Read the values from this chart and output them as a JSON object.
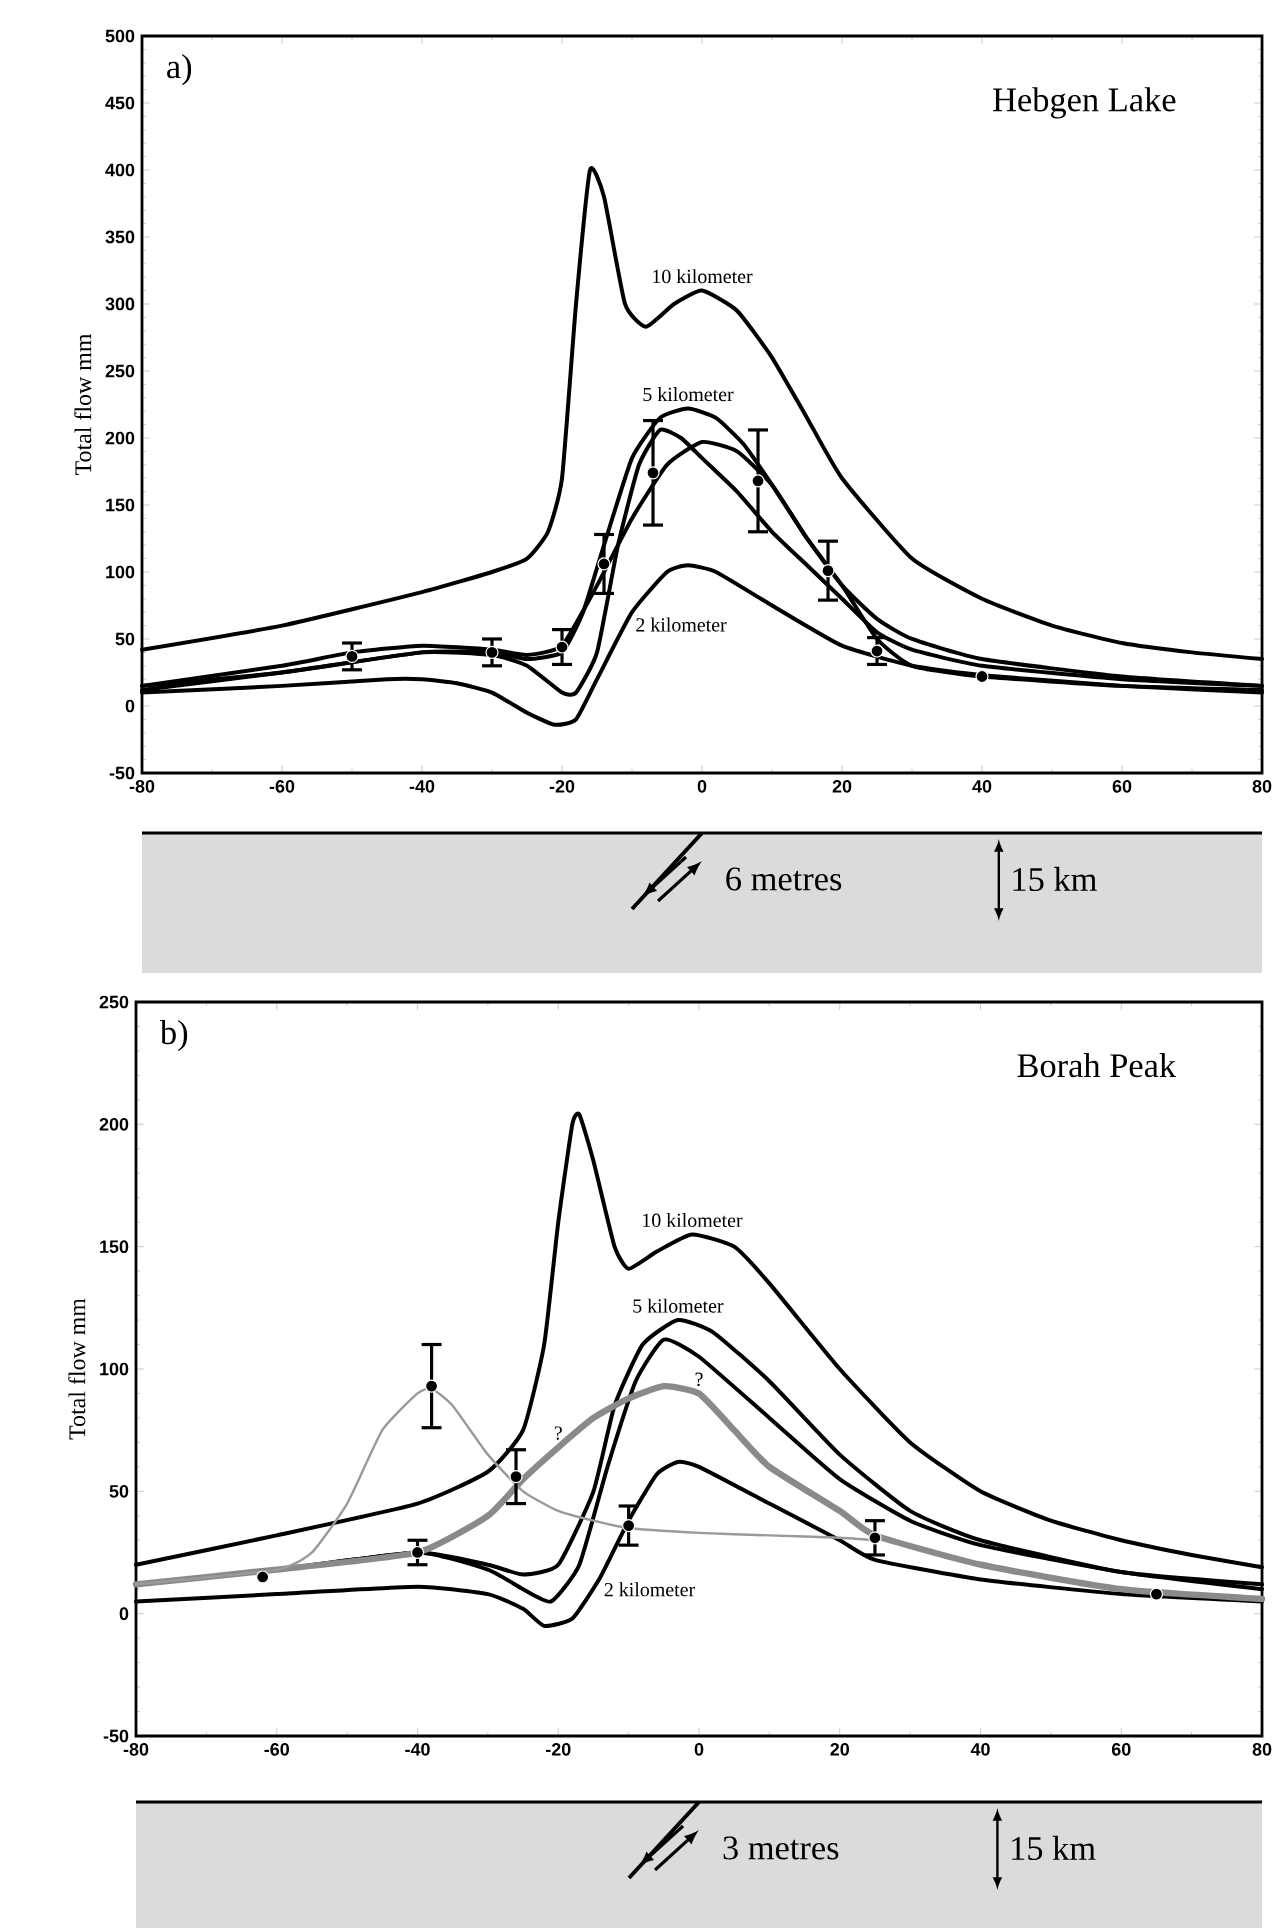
{
  "chart_data": [
    {
      "type": "line",
      "title": "Hebgen Lake",
      "ylabel": "Total flow mm",
      "xlim": [
        -80,
        80
      ],
      "ylim": [
        -50,
        500
      ],
      "xticks": [
        -80,
        -60,
        -40,
        -20,
        0,
        20,
        40,
        60,
        80
      ],
      "yticks": [
        -50,
        0,
        50,
        100,
        150,
        200,
        250,
        300,
        350,
        400,
        450,
        500
      ],
      "annotations": [
        "a)",
        "6 metres",
        "15 km",
        {
          "text": "10 kilometer",
          "x": 0,
          "y": 310
        },
        {
          "text": "5 kilometer",
          "x": -2,
          "y": 222
        },
        {
          "text": "2 kilometer",
          "x": -10,
          "y": 70
        }
      ],
      "series": [
        {
          "color": "#000000",
          "x": [
            -80,
            -60,
            -40,
            -30,
            -25,
            -22,
            -20,
            -18,
            -16,
            -14,
            -11,
            -8,
            -4,
            0,
            5,
            10,
            15,
            20,
            30,
            40,
            50,
            60,
            70,
            80
          ],
          "values": [
            42,
            60,
            85,
            100,
            110,
            130,
            170,
            300,
            400,
            380,
            300,
            283,
            300,
            310,
            295,
            260,
            215,
            170,
            110,
            80,
            60,
            47,
            40,
            35
          ]
        },
        {
          "color": "#000000",
          "x": [
            -80,
            -60,
            -40,
            -30,
            -25,
            -20,
            -17,
            -14,
            -10,
            -6,
            -2,
            2,
            6,
            10,
            15,
            20,
            25,
            30,
            40,
            60,
            80
          ],
          "values": [
            15,
            25,
            40,
            40,
            35,
            40,
            70,
            120,
            185,
            215,
            222,
            215,
            195,
            165,
            125,
            90,
            65,
            50,
            35,
            22,
            15
          ]
        },
        {
          "color": "#000000",
          "x": [
            -80,
            -60,
            -40,
            -30,
            -25,
            -20,
            -18,
            -15,
            -12,
            -9,
            -6,
            -3,
            0,
            5,
            10,
            15,
            20,
            25,
            30,
            40,
            60,
            80
          ],
          "values": [
            12,
            25,
            40,
            38,
            30,
            10,
            10,
            40,
            120,
            180,
            206,
            200,
            185,
            160,
            130,
            105,
            80,
            55,
            42,
            30,
            20,
            15
          ]
        },
        {
          "color": "#000000",
          "x": [
            -80,
            -60,
            -50,
            -40,
            -30,
            -25,
            -20,
            -15,
            -10,
            -5,
            0,
            5,
            10,
            15,
            20,
            25,
            30,
            40,
            60,
            80
          ],
          "values": [
            15,
            30,
            40,
            45,
            42,
            38,
            45,
            90,
            140,
            180,
            197,
            190,
            165,
            125,
            90,
            50,
            30,
            22,
            15,
            12
          ]
        },
        {
          "color": "#000000",
          "x": [
            -80,
            -60,
            -45,
            -40,
            -35,
            -30,
            -25,
            -21,
            -18,
            -15,
            -10,
            -5,
            -2,
            2,
            10,
            20,
            30,
            40,
            60,
            80
          ],
          "values": [
            10,
            15,
            20,
            20,
            17,
            10,
            -5,
            -14,
            -10,
            20,
            70,
            100,
            105,
            100,
            75,
            45,
            30,
            23,
            15,
            10
          ]
        },
        {
          "type": "scatter",
          "marker": "circle",
          "color": "#000000",
          "x": [
            -50,
            -30,
            -20,
            -14,
            -7,
            8,
            18,
            25,
            40
          ],
          "values": [
            37,
            40,
            44,
            106,
            174,
            168,
            101,
            41,
            22
          ],
          "errors": [
            10,
            10,
            13,
            22,
            39,
            38,
            22,
            10,
            null
          ]
        }
      ]
    },
    {
      "type": "line",
      "title": "Borah Peak",
      "ylabel": "Total flow mm",
      "xlim": [
        -80,
        80
      ],
      "ylim": [
        -50,
        250
      ],
      "xticks": [
        -80,
        -60,
        -40,
        -20,
        0,
        20,
        40,
        60,
        80
      ],
      "yticks": [
        -50,
        0,
        50,
        100,
        150,
        200,
        250
      ],
      "annotations": [
        "b)",
        "3 metres",
        "15 km",
        {
          "text": "10 kilometer",
          "x": -1,
          "y": 155
        },
        {
          "text": "5 kilometer",
          "x": -3,
          "y": 120
        },
        {
          "text": "2 kilometer",
          "x": -14,
          "y": 15
        },
        {
          "text": "?",
          "x": -20,
          "y": 68
        },
        {
          "text": "?",
          "x": 0,
          "y": 90
        }
      ],
      "series": [
        {
          "color": "#000000",
          "x": [
            -80,
            -60,
            -40,
            -30,
            -25,
            -22,
            -20,
            -18,
            -17,
            -15,
            -12,
            -10,
            -6,
            -1,
            5,
            10,
            20,
            30,
            40,
            50,
            60,
            70,
            80
          ],
          "values": [
            20,
            32,
            45,
            58,
            75,
            110,
            160,
            200,
            204,
            185,
            150,
            141,
            148,
            155,
            150,
            135,
            100,
            70,
            50,
            38,
            30,
            24,
            19
          ]
        },
        {
          "color": "#000000",
          "x": [
            -80,
            -60,
            -40,
            -30,
            -25,
            -20,
            -15,
            -12,
            -8,
            -3,
            2,
            10,
            20,
            30,
            40,
            60,
            80
          ],
          "values": [
            12,
            18,
            25,
            20,
            16,
            20,
            50,
            85,
            110,
            120,
            115,
            95,
            65,
            42,
            30,
            17,
            12
          ]
        },
        {
          "color": "#000000",
          "x": [
            -80,
            -60,
            -40,
            -30,
            -25,
            -21,
            -17,
            -13,
            -9,
            -5,
            0,
            10,
            20,
            30,
            40,
            60,
            80
          ],
          "values": [
            12,
            18,
            25,
            18,
            10,
            5,
            20,
            60,
            95,
            112,
            105,
            80,
            55,
            38,
            28,
            17,
            10
          ]
        },
        {
          "color": "#000000",
          "x": [
            -80,
            -60,
            -40,
            -30,
            -25,
            -22,
            -18,
            -14,
            -10,
            -6,
            -3,
            0,
            10,
            20,
            25,
            40,
            60,
            80
          ],
          "values": [
            5,
            8,
            11,
            8,
            2,
            -5,
            -2,
            15,
            38,
            57,
            62,
            60,
            45,
            30,
            22,
            14,
            8,
            5
          ]
        },
        {
          "color": "#8a8a8a",
          "x": [
            -80,
            -60,
            -40,
            -30,
            -25,
            -20,
            -15,
            -10,
            -5,
            0,
            5,
            10,
            20,
            25,
            40,
            60,
            80
          ],
          "values": [
            12,
            18,
            25,
            40,
            55,
            68,
            80,
            88,
            93,
            90,
            75,
            60,
            42,
            32,
            20,
            10,
            6
          ]
        },
        {
          "color": "#9a9a9a",
          "x": [
            -80,
            -60,
            -55,
            -50,
            -45,
            -40,
            -38,
            -35,
            -30,
            -25,
            -20,
            -15,
            -10,
            0,
            10,
            20,
            25
          ],
          "values": [
            12,
            18,
            25,
            45,
            75,
            90,
            92,
            85,
            65,
            50,
            42,
            38,
            35,
            33,
            32,
            31,
            30
          ]
        },
        {
          "type": "scatter",
          "marker": "circle",
          "color": "#000000",
          "x": [
            -62,
            -40,
            -38,
            -26,
            -10,
            25,
            65
          ],
          "values": [
            15,
            25,
            93,
            56,
            36,
            31,
            8
          ],
          "errors": [
            null,
            5,
            17,
            11,
            8,
            7,
            null
          ]
        }
      ]
    }
  ]
}
